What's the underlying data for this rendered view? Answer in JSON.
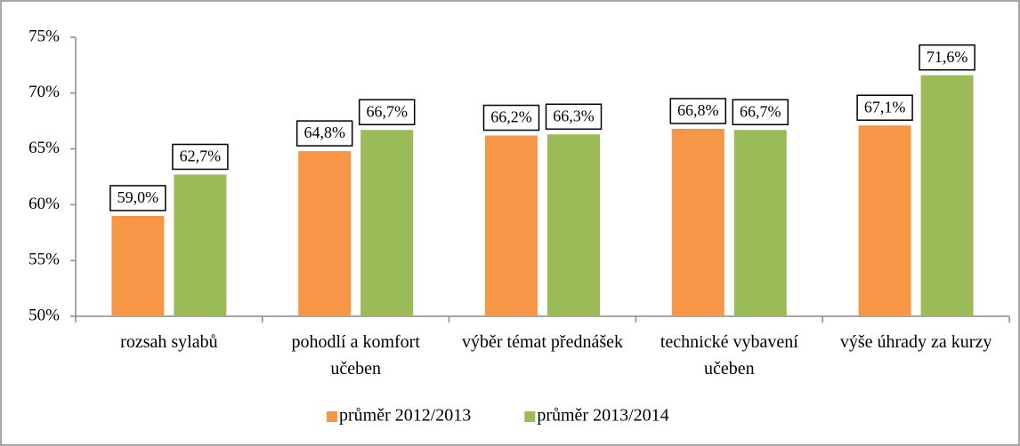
{
  "chart_data": {
    "type": "bar",
    "categories": [
      "rozsah sylabů",
      "pohodlí a komfort učeben",
      "výběr témat přednášek",
      "technické vybavení učeben",
      "výše úhrady za kurzy"
    ],
    "series": [
      {
        "name": "průměr 2012/2013",
        "color": "#f79646",
        "values": [
          59.0,
          64.8,
          66.2,
          66.8,
          67.1
        ],
        "value_labels": [
          "59,0%",
          "64,8%",
          "66,2%",
          "66,8%",
          "67,1%"
        ]
      },
      {
        "name": "průměr 2013/2014",
        "color": "#9bbb59",
        "values": [
          62.7,
          66.7,
          66.3,
          66.7,
          71.6
        ],
        "value_labels": [
          "62,7%",
          "66,7%",
          "66,3%",
          "66,7%",
          "71,6%"
        ]
      }
    ],
    "ylim": [
      50,
      75
    ],
    "yticks": [
      {
        "value": 50,
        "label": "50%"
      },
      {
        "value": 55,
        "label": "55%"
      },
      {
        "value": 60,
        "label": "60%"
      },
      {
        "value": 65,
        "label": "65%"
      },
      {
        "value": 70,
        "label": "70%"
      },
      {
        "value": 75,
        "label": "75%"
      }
    ],
    "grid": false,
    "legend": "bottom"
  }
}
